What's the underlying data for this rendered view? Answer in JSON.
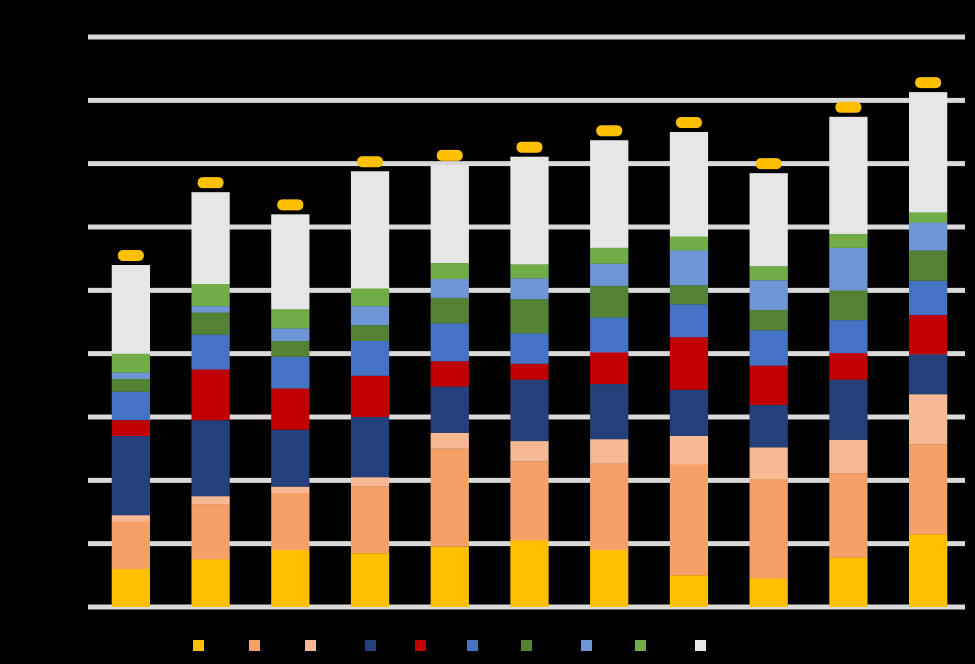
{
  "chart_data": {
    "type": "bar",
    "stacked": true,
    "title": "",
    "xlabel": "",
    "ylabel": "",
    "grid": true,
    "legend_position": "bottom",
    "ylim": [
      0,
      9
    ],
    "yticks": [
      0,
      1,
      2,
      3,
      4,
      5,
      6,
      7,
      8,
      9
    ],
    "categories": [
      "",
      "",
      "",
      "",
      "",
      "",
      "",
      "",
      "",
      "",
      ""
    ],
    "series": [
      {
        "color": "#ffc000",
        "values": [
          0.6,
          0.75,
          0.9,
          0.85,
          0.95,
          1.05,
          0.9,
          0.5,
          0.45,
          0.78,
          1.15
        ]
      },
      {
        "color": "#f4a066",
        "values": [
          0.75,
          0.87,
          0.9,
          1.05,
          1.55,
          1.25,
          1.36,
          1.75,
          1.57,
          1.33,
          1.42
        ]
      },
      {
        "color": "#f6b994",
        "values": [
          0.1,
          0.13,
          0.1,
          0.15,
          0.25,
          0.32,
          0.39,
          0.45,
          0.5,
          0.53,
          0.79
        ]
      },
      {
        "color": "#23407a",
        "values": [
          1.25,
          1.2,
          0.9,
          0.95,
          0.73,
          0.97,
          0.87,
          0.73,
          0.67,
          0.95,
          0.63
        ]
      },
      {
        "color": "#c00000",
        "values": [
          0.25,
          0.8,
          0.65,
          0.65,
          0.4,
          0.25,
          0.5,
          0.83,
          0.62,
          0.42,
          0.62
        ]
      },
      {
        "color": "#4472c4",
        "values": [
          0.45,
          0.55,
          0.5,
          0.55,
          0.6,
          0.48,
          0.55,
          0.52,
          0.56,
          0.52,
          0.54
        ]
      },
      {
        "color": "#548235",
        "values": [
          0.2,
          0.35,
          0.25,
          0.25,
          0.4,
          0.54,
          0.5,
          0.3,
          0.32,
          0.47,
          0.48
        ]
      },
      {
        "color": "#6e96d6",
        "values": [
          0.1,
          0.1,
          0.2,
          0.3,
          0.3,
          0.33,
          0.35,
          0.55,
          0.47,
          0.67,
          0.44
        ]
      },
      {
        "color": "#70ad47",
        "values": [
          0.3,
          0.35,
          0.3,
          0.28,
          0.25,
          0.22,
          0.25,
          0.22,
          0.22,
          0.22,
          0.16
        ]
      },
      {
        "color": "#e7e6e6",
        "values": [
          1.4,
          1.45,
          1.5,
          1.85,
          1.55,
          1.7,
          1.7,
          1.65,
          1.47,
          1.85,
          1.9
        ]
      }
    ],
    "data_labels": [
      "",
      "",
      "",
      "",
      "",
      "",
      "",
      "",
      "",
      "",
      ""
    ],
    "data_label_color": "#ffc000"
  }
}
